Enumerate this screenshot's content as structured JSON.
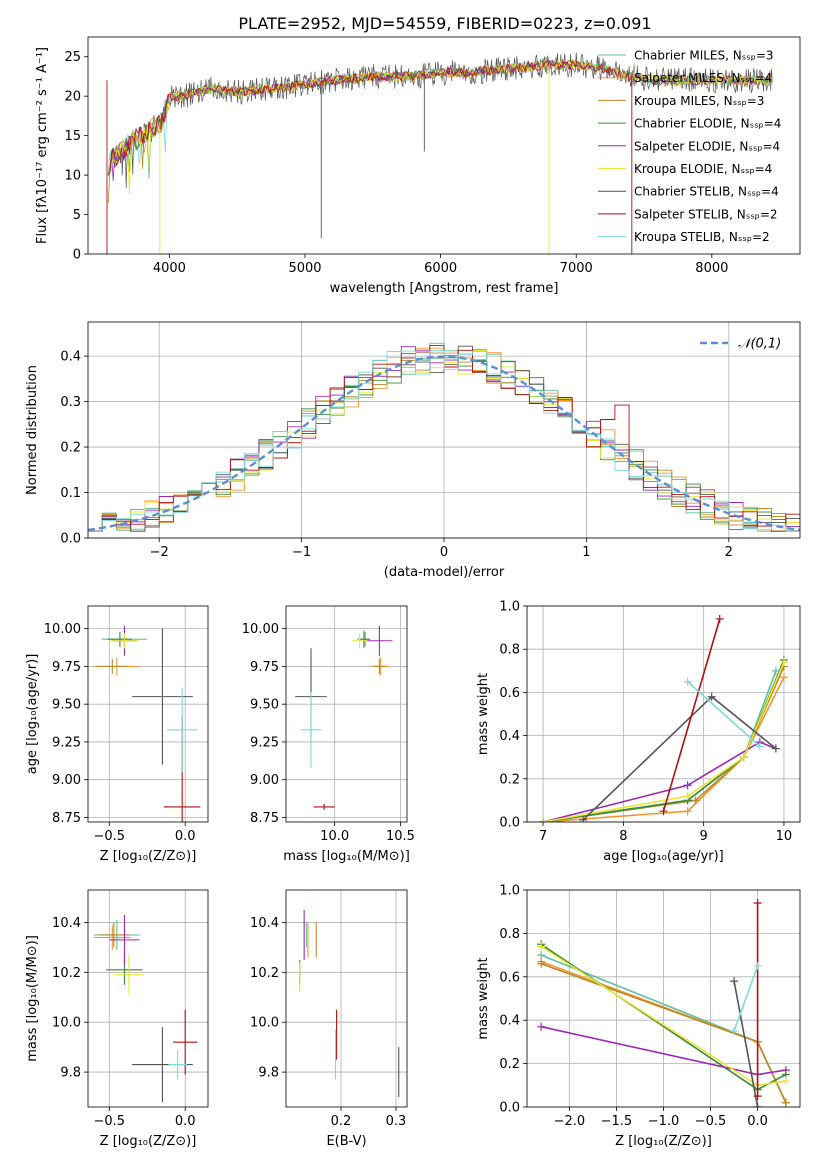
{
  "figure_title": "PLATE=2952, MJD=54559, FIBERID=0223, z=0.091",
  "model_colors": [
    "#60c0a0",
    "#f2972f",
    "#b88a2a",
    "#3c8a3c",
    "#9a2ab2",
    "#e6e633",
    "#555555",
    "#b01010",
    "#7fdada"
  ],
  "chart_data": [
    {
      "id": "spectrum",
      "type": "line",
      "title": "PLATE=2952, MJD=54559, FIBERID=0223, z=0.091",
      "xlabel": "wavelength [Angstrom, rest frame]",
      "ylabel": "Flux [fλ10⁻¹⁷ erg cm⁻² s⁻¹ A⁻¹]",
      "xlim": [
        3400,
        8650
      ],
      "ylim": [
        0,
        27.5
      ],
      "xticks": [
        4000,
        5000,
        6000,
        7000,
        8000
      ],
      "yticks": [
        0,
        5,
        10,
        15,
        20,
        25
      ],
      "grid": false,
      "legend_position": "upper-right",
      "legend": [
        "Chabrier MILES, Nₛₛₚ=3",
        "Salpeter MILES, Nₛₛₚ=4",
        "Kroupa MILES, Nₛₛₚ=3",
        "Chabrier ELODIE, Nₛₛₚ=4",
        "Salpeter ELODIE, Nₛₛₚ=4",
        "Kroupa ELODIE, Nₛₛₚ=4",
        "Chabrier STELIB, Nₛₛₚ=4",
        "Salpeter STELIB, Nₛₛₚ=2",
        "Kroupa STELIB, Nₛₛₚ=2"
      ],
      "series_envelope": {
        "x": [
          3550,
          3700,
          3850,
          3950,
          4000,
          4100,
          4300,
          4500,
          4800,
          5000,
          5200,
          5500,
          5800,
          6000,
          6200,
          6500,
          6800,
          7000,
          7200,
          7400,
          7600,
          8000,
          8400
        ],
        "y": [
          11.5,
          14,
          15.5,
          17,
          20,
          20,
          21,
          20.5,
          21,
          21.5,
          22,
          22.5,
          22.5,
          23,
          23,
          23.5,
          24,
          24,
          23.5,
          22.5,
          22,
          22,
          22
        ]
      }
    },
    {
      "id": "residuals",
      "type": "line",
      "xlabel": "(data-model)/error",
      "ylabel": "Normed distribution",
      "xlim": [
        -2.5,
        2.5
      ],
      "ylim": [
        0,
        0.475
      ],
      "xticks": [
        -2,
        -1,
        0,
        1,
        2
      ],
      "yticks": [
        0.0,
        0.1,
        0.2,
        0.3,
        0.4
      ],
      "grid": true,
      "legend": [
        "𝒩(0,1)"
      ],
      "legend_position": "upper-right",
      "reference_curve": {
        "mu": 0,
        "sigma": 1
      },
      "bin_width": 0.1
    },
    {
      "id": "age-vs-Z",
      "type": "scatter",
      "xlabel": "Z [log₁₀(Z/Z⊙)]",
      "ylabel": "age  [log₁₀(age/yr)]",
      "xlim": [
        -0.64,
        0.15
      ],
      "ylim": [
        8.72,
        10.15
      ],
      "xticks": [
        -0.5,
        0.0
      ],
      "yticks": [
        8.75,
        9.0,
        9.25,
        9.5,
        9.75,
        10.0
      ],
      "grid": true,
      "points": [
        {
          "x": -0.4,
          "y": 9.93,
          "xerr": 0.15,
          "yerr": 0.06,
          "c": 0
        },
        {
          "x": -0.45,
          "y": 9.75,
          "xerr": 0.15,
          "yerr": 0.06,
          "c": 1
        },
        {
          "x": -0.48,
          "y": 9.75,
          "xerr": 0.1,
          "yerr": 0.05,
          "c": 2
        },
        {
          "x": -0.43,
          "y": 9.93,
          "xerr": 0.08,
          "yerr": 0.05,
          "c": 3
        },
        {
          "x": -0.4,
          "y": 9.92,
          "xerr": 0.08,
          "yerr": 0.1,
          "c": 4
        },
        {
          "x": -0.4,
          "y": 9.92,
          "xerr": 0.1,
          "yerr": 0.05,
          "c": 5
        },
        {
          "x": -0.15,
          "y": 9.55,
          "xerr": 0.2,
          "yerr": 0.45,
          "c": 6
        },
        {
          "x": -0.02,
          "y": 8.82,
          "xerr": 0.12,
          "yerr": 0.6,
          "c": 7
        },
        {
          "x": -0.02,
          "y": 9.33,
          "xerr": 0.1,
          "yerr": 0.28,
          "c": 8
        }
      ]
    },
    {
      "id": "age-vs-mass",
      "type": "scatter",
      "xlabel": "mass [log₁₀(M/M⊙)]",
      "ylabel": "",
      "xlim": [
        9.63,
        10.55
      ],
      "ylim": [
        8.72,
        10.15
      ],
      "xticks": [
        9.5,
        10.0,
        10.5
      ],
      "yticks": [
        8.75,
        9.0,
        9.25,
        9.5,
        9.75,
        10.0
      ],
      "grid": true,
      "points": [
        {
          "x": 10.22,
          "y": 9.93,
          "xerr": 0.05,
          "yerr": 0.06,
          "c": 0
        },
        {
          "x": 10.35,
          "y": 9.75,
          "xerr": 0.06,
          "yerr": 0.06,
          "c": 1
        },
        {
          "x": 10.34,
          "y": 9.75,
          "xerr": 0.05,
          "yerr": 0.05,
          "c": 2
        },
        {
          "x": 10.23,
          "y": 9.93,
          "xerr": 0.04,
          "yerr": 0.05,
          "c": 3
        },
        {
          "x": 10.34,
          "y": 9.92,
          "xerr": 0.1,
          "yerr": 0.1,
          "c": 4
        },
        {
          "x": 10.19,
          "y": 9.92,
          "xerr": 0.06,
          "yerr": 0.05,
          "c": 5
        },
        {
          "x": 9.82,
          "y": 9.55,
          "xerr": 0.12,
          "yerr": 0.32,
          "c": 6
        },
        {
          "x": 9.92,
          "y": 8.82,
          "xerr": 0.08,
          "yerr": 0.02,
          "c": 7
        },
        {
          "x": 9.82,
          "y": 9.33,
          "xerr": 0.08,
          "yerr": 0.25,
          "c": 8
        }
      ]
    },
    {
      "id": "massweight-vs-age",
      "type": "line",
      "xlabel": "age  [log₁₀(age/yr)]",
      "ylabel": "mass weight",
      "xlim": [
        6.8,
        10.2
      ],
      "ylim": [
        0,
        1.0
      ],
      "xticks": [
        7,
        8,
        9,
        10
      ],
      "yticks": [
        0.0,
        0.2,
        0.4,
        0.6,
        0.8,
        1.0
      ],
      "grid": true,
      "series": [
        {
          "c": 0,
          "x": [
            7.0,
            8.8,
            9.5,
            9.9
          ],
          "y": [
            0.0,
            0.1,
            0.3,
            0.7
          ]
        },
        {
          "c": 1,
          "x": [
            7.0,
            8.8,
            9.5,
            10.0
          ],
          "y": [
            0.0,
            0.05,
            0.3,
            0.67
          ]
        },
        {
          "c": 2,
          "x": [
            7.0,
            8.9,
            9.5,
            10.0
          ],
          "y": [
            0.0,
            0.1,
            0.3,
            0.72
          ]
        },
        {
          "c": 3,
          "x": [
            7.0,
            8.8,
            9.5,
            10.0
          ],
          "y": [
            0.0,
            0.1,
            0.3,
            0.75
          ]
        },
        {
          "c": 4,
          "x": [
            7.0,
            8.8,
            9.7,
            9.9
          ],
          "y": [
            0.0,
            0.17,
            0.37,
            0.34
          ]
        },
        {
          "c": 5,
          "x": [
            7.0,
            8.8,
            9.5,
            10.0
          ],
          "y": [
            0.0,
            0.12,
            0.3,
            0.74
          ]
        },
        {
          "c": 6,
          "x": [
            7.5,
            9.1,
            9.9
          ],
          "y": [
            0.01,
            0.58,
            0.34
          ]
        },
        {
          "c": 7,
          "x": [
            8.5,
            9.2
          ],
          "y": [
            0.05,
            0.94
          ]
        },
        {
          "c": 8,
          "x": [
            8.8,
            9.7
          ],
          "y": [
            0.65,
            0.35
          ]
        }
      ]
    },
    {
      "id": "mass-vs-Z",
      "type": "scatter",
      "xlabel": "Z [log₁₀(Z/Z⊙)]",
      "ylabel": "mass [log₁₀(M/M⊙)]",
      "xlim": [
        -0.64,
        0.15
      ],
      "ylim": [
        9.66,
        10.53
      ],
      "xticks": [
        -0.5,
        0.0
      ],
      "yticks": [
        9.8,
        10.0,
        10.2,
        10.4
      ],
      "grid": true,
      "points": [
        {
          "x": -0.45,
          "y": 10.35,
          "xerr": 0.15,
          "yerr": 0.06,
          "c": 0
        },
        {
          "x": -0.48,
          "y": 10.34,
          "xerr": 0.12,
          "yerr": 0.05,
          "c": 1
        },
        {
          "x": -0.47,
          "y": 10.35,
          "xerr": 0.1,
          "yerr": 0.05,
          "c": 2
        },
        {
          "x": -0.4,
          "y": 10.21,
          "xerr": 0.12,
          "yerr": 0.06,
          "c": 3
        },
        {
          "x": -0.4,
          "y": 10.33,
          "xerr": 0.1,
          "yerr": 0.1,
          "c": 4
        },
        {
          "x": -0.37,
          "y": 10.19,
          "xerr": 0.1,
          "yerr": 0.08,
          "c": 5
        },
        {
          "x": -0.15,
          "y": 9.83,
          "xerr": 0.2,
          "yerr": 0.15,
          "c": 6
        },
        {
          "x": 0.0,
          "y": 9.92,
          "xerr": 0.08,
          "yerr": 0.13,
          "c": 7
        },
        {
          "x": -0.05,
          "y": 9.83,
          "xerr": 0.06,
          "yerr": 0.06,
          "c": 8
        }
      ]
    },
    {
      "id": "mass-vs-EBV",
      "type": "scatter",
      "xlabel": "E(B-V)",
      "ylabel": "",
      "xlim": [
        0.1,
        0.32
      ],
      "ylim": [
        9.66,
        10.53
      ],
      "xticks": [
        0.2,
        0.3
      ],
      "yticks": [
        9.8,
        10.0,
        10.2,
        10.4
      ],
      "grid": true,
      "points": [
        {
          "x": 0.137,
          "y": 10.35,
          "yerr": 0.05,
          "c": 0
        },
        {
          "x": 0.14,
          "y": 10.33,
          "yerr": 0.07,
          "c": 1
        },
        {
          "x": 0.155,
          "y": 10.33,
          "yerr": 0.07,
          "c": 2
        },
        {
          "x": 0.125,
          "y": 10.2,
          "yerr": 0.05,
          "c": 3
        },
        {
          "x": 0.133,
          "y": 10.35,
          "yerr": 0.1,
          "c": 4
        },
        {
          "x": 0.125,
          "y": 10.18,
          "yerr": 0.06,
          "c": 5
        },
        {
          "x": 0.305,
          "y": 9.8,
          "yerr": 0.1,
          "c": 6
        },
        {
          "x": 0.192,
          "y": 9.95,
          "yerr": 0.1,
          "c": 7
        },
        {
          "x": 0.19,
          "y": 9.87,
          "yerr": 0.1,
          "c": 8
        }
      ]
    },
    {
      "id": "massweight-vs-Z",
      "type": "line",
      "xlabel": "Z [log₁₀(Z/Z⊙)]",
      "ylabel": "mass weight",
      "xlim": [
        -2.45,
        0.45
      ],
      "ylim": [
        0,
        1.0
      ],
      "xticks": [
        -2.0,
        -1.5,
        -1.0,
        -0.5,
        0.0
      ],
      "yticks": [
        0.0,
        0.2,
        0.4,
        0.6,
        0.8,
        1.0
      ],
      "grid": true,
      "series": [
        {
          "c": 0,
          "x": [
            -2.3,
            0.0,
            0.3
          ],
          "y": [
            0.7,
            0.3,
            0.02
          ]
        },
        {
          "c": 1,
          "x": [
            -2.3,
            0.0,
            0.3
          ],
          "y": [
            0.67,
            0.3,
            0.02
          ]
        },
        {
          "c": 2,
          "x": [
            -2.3,
            0.0,
            0.3
          ],
          "y": [
            0.66,
            0.3,
            0.02
          ]
        },
        {
          "c": 3,
          "x": [
            -2.3,
            0.0,
            0.3
          ],
          "y": [
            0.75,
            0.08,
            0.15
          ]
        },
        {
          "c": 4,
          "x": [
            -2.3,
            0.0,
            0.3
          ],
          "y": [
            0.37,
            0.15,
            0.17
          ]
        },
        {
          "c": 5,
          "x": [
            -2.3,
            0.0,
            0.3
          ],
          "y": [
            0.74,
            0.1,
            0.12
          ]
        },
        {
          "c": 6,
          "x": [
            -0.25,
            0.0
          ],
          "y": [
            0.58,
            0.0
          ]
        },
        {
          "c": 7,
          "x": [
            0.0,
            0.0
          ],
          "y": [
            0.05,
            0.94
          ]
        },
        {
          "c": 8,
          "x": [
            -0.25,
            0.0
          ],
          "y": [
            0.35,
            0.65
          ]
        }
      ]
    }
  ]
}
